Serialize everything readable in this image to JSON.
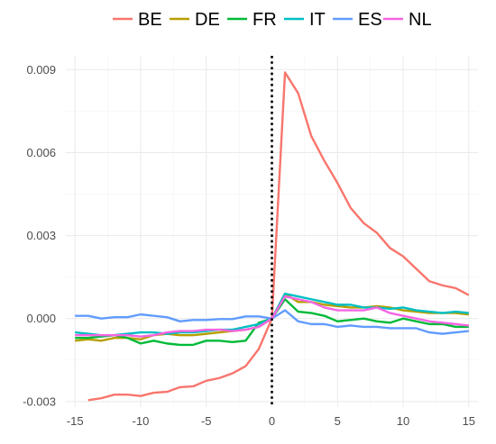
{
  "chart_data": {
    "type": "line",
    "xlim": [
      -15.7,
      15.7
    ],
    "ylim": [
      -0.0032,
      0.0095
    ],
    "x_ticks": [
      -15,
      -10,
      -5,
      0,
      5,
      10,
      15
    ],
    "x_tick_labels": [
      "-15",
      "-10",
      "-5",
      "0",
      "5",
      "10",
      "15"
    ],
    "y_ticks": [
      -0.003,
      0.0,
      0.003,
      0.006,
      0.009
    ],
    "y_tick_labels": [
      "-0.003",
      "0.000",
      "0.003",
      "0.006",
      "0.009"
    ],
    "grid": true,
    "legend_position": "top",
    "vertical_reference_line": {
      "x": 0,
      "style": "dotted",
      "color": "#000000"
    },
    "series": [
      {
        "name": "BE",
        "color": "#F8766D",
        "x": [
          -14,
          -13,
          -12,
          -11,
          -10,
          -9,
          -8,
          -7,
          -6,
          -5,
          -4,
          -3,
          -2,
          -1,
          0,
          1,
          2,
          3,
          4,
          5,
          6,
          7,
          8,
          9,
          10,
          11,
          12,
          13,
          14,
          15
        ],
        "values": [
          -0.00295,
          -0.00288,
          -0.00275,
          -0.00275,
          -0.0028,
          -0.00268,
          -0.00265,
          -0.00248,
          -0.00245,
          -0.00225,
          -0.00215,
          -0.00198,
          -0.00172,
          -0.0011,
          0.0,
          0.0089,
          0.00815,
          0.0066,
          0.0057,
          0.0049,
          0.004,
          0.00345,
          0.0031,
          0.00255,
          0.00225,
          0.0018,
          0.00135,
          0.0012,
          0.0011,
          0.00085
        ]
      },
      {
        "name": "DE",
        "color": "#B79F00",
        "x": [
          -15,
          -14,
          -13,
          -12,
          -11,
          -10,
          -9,
          -8,
          -7,
          -6,
          -5,
          -4,
          -3,
          -2,
          -1,
          0,
          1,
          2,
          3,
          4,
          5,
          6,
          7,
          8,
          9,
          10,
          11,
          12,
          13,
          14,
          15
        ],
        "values": [
          -0.0008,
          -0.00075,
          -0.0008,
          -0.0007,
          -0.0007,
          -0.00075,
          -0.0006,
          -0.00055,
          -0.0006,
          -0.0006,
          -0.00055,
          -0.0005,
          -0.00045,
          -0.0004,
          -0.0003,
          0.0,
          0.0009,
          0.0006,
          0.0006,
          0.0005,
          0.00045,
          0.0004,
          0.0004,
          0.00045,
          0.0004,
          0.0003,
          0.00025,
          0.0002,
          0.0002,
          0.0002,
          0.00015
        ]
      },
      {
        "name": "FR",
        "color": "#00BA38",
        "x": [
          -15,
          -14,
          -13,
          -12,
          -11,
          -10,
          -9,
          -8,
          -7,
          -6,
          -5,
          -4,
          -3,
          -2,
          -1,
          0,
          1,
          2,
          3,
          4,
          5,
          6,
          7,
          8,
          9,
          10,
          11,
          12,
          13,
          14,
          15
        ],
        "values": [
          -0.0007,
          -0.0007,
          -0.00065,
          -0.0006,
          -0.0007,
          -0.0009,
          -0.0008,
          -0.0009,
          -0.00095,
          -0.00095,
          -0.0008,
          -0.0008,
          -0.00085,
          -0.0008,
          -0.00015,
          0.0,
          0.0007,
          0.00025,
          0.0002,
          0.0001,
          -0.0001,
          -5e-05,
          0.0,
          -0.0001,
          -0.00015,
          0.0,
          -0.0001,
          -0.0002,
          -0.0002,
          -0.0003,
          -0.0003
        ]
      },
      {
        "name": "IT",
        "color": "#00BFC4",
        "x": [
          -15,
          -14,
          -13,
          -12,
          -11,
          -10,
          -9,
          -8,
          -7,
          -6,
          -5,
          -4,
          -3,
          -2,
          -1,
          0,
          1,
          2,
          3,
          4,
          5,
          6,
          7,
          8,
          9,
          10,
          11,
          12,
          13,
          14,
          15
        ],
        "values": [
          -0.0005,
          -0.00055,
          -0.0006,
          -0.0006,
          -0.00055,
          -0.0005,
          -0.0005,
          -0.00055,
          -0.0005,
          -0.0005,
          -0.00045,
          -0.0004,
          -0.0004,
          -0.0003,
          -0.0002,
          0.0,
          0.0009,
          0.0008,
          0.0007,
          0.0006,
          0.0005,
          0.0005,
          0.0004,
          0.0004,
          0.00035,
          0.0004,
          0.0003,
          0.00025,
          0.0002,
          0.00025,
          0.0002
        ]
      },
      {
        "name": "ES",
        "color": "#619CFF",
        "x": [
          -15,
          -14,
          -13,
          -12,
          -11,
          -10,
          -9,
          -8,
          -7,
          -6,
          -5,
          -4,
          -3,
          -2,
          -1,
          0,
          1,
          2,
          3,
          4,
          5,
          6,
          7,
          8,
          9,
          10,
          11,
          12,
          13,
          14,
          15
        ],
        "values": [
          0.0001,
          0.0001,
          0.0,
          5e-05,
          5e-05,
          0.00015,
          0.0001,
          5e-05,
          -0.0001,
          -5e-05,
          -5e-05,
          -2e-05,
          -2e-05,
          8e-05,
          8e-05,
          0.0,
          0.0003,
          -0.0001,
          -0.0002,
          -0.0002,
          -0.0003,
          -0.00025,
          -0.0003,
          -0.0003,
          -0.00035,
          -0.00035,
          -0.00035,
          -0.0005,
          -0.00055,
          -0.0005,
          -0.00045
        ]
      },
      {
        "name": "NL",
        "color": "#F564E3",
        "x": [
          -15,
          -14,
          -13,
          -12,
          -11,
          -10,
          -9,
          -8,
          -7,
          -6,
          -5,
          -4,
          -3,
          -2,
          -1,
          0,
          1,
          2,
          3,
          4,
          5,
          6,
          7,
          8,
          9,
          10,
          11,
          12,
          13,
          14,
          15
        ],
        "values": [
          -0.0006,
          -0.0006,
          -0.0006,
          -0.0006,
          -0.0006,
          -0.00065,
          -0.0006,
          -0.0005,
          -0.00045,
          -0.00045,
          -0.0004,
          -0.0004,
          -0.00045,
          -0.0004,
          -0.0003,
          0.0,
          0.0008,
          0.0007,
          0.0006,
          0.0004,
          0.0003,
          0.0003,
          0.0003,
          0.0004,
          0.0002,
          0.0001,
          0.0,
          -0.0001,
          -0.00015,
          -0.0002,
          -0.00025
        ]
      }
    ]
  }
}
